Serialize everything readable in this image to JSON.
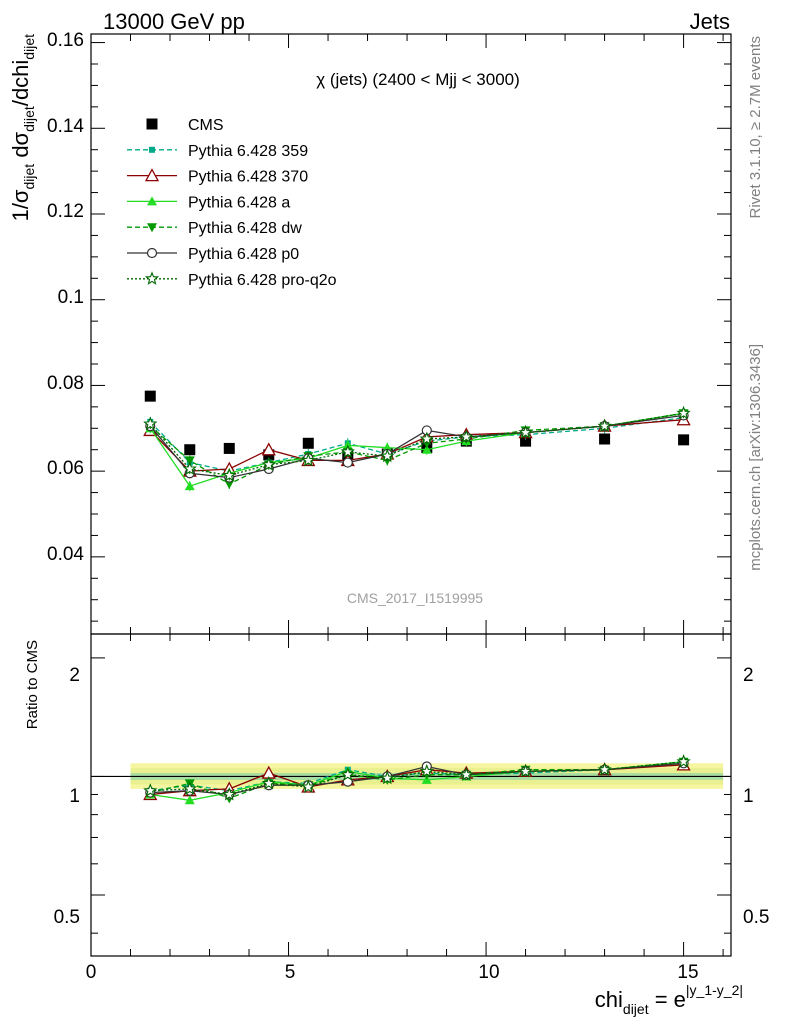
{
  "header": {
    "left": "13000 GeV pp",
    "right": "Jets"
  },
  "side_labels": {
    "rivet": "Rivet 3.1.10, ≥ 2.7M events",
    "mcplots": "mcplots.cern.ch [arXiv:1306.3436]"
  },
  "main_plot": {
    "title": "χ (jets) (2400 < Mjj < 3000)",
    "analysis_tag": "CMS_2017_I1519995",
    "ylabel_parts": [
      "1/σ",
      "dijet",
      " dσ",
      "dijet",
      "/dchi",
      "dijet"
    ],
    "yticks": [
      "0.04",
      "0.06",
      "0.08",
      "0.1",
      "0.12",
      "0.14",
      "0.16"
    ]
  },
  "ratio_plot": {
    "ylabel": "Ratio to CMS",
    "yticks_left": [
      "0.5",
      "1",
      "2"
    ],
    "yticks_right": [
      "0.5",
      "1",
      "2"
    ]
  },
  "x_axis": {
    "label_main": "chi",
    "label_sub": "dijet",
    "label_eq": " = e",
    "label_sup": "|y_1-y_2|",
    "ticks": [
      "0",
      "5",
      "10",
      "15"
    ]
  },
  "chart_data": {
    "type": "line",
    "x": [
      1.5,
      2.5,
      3.5,
      4.5,
      5.5,
      6.5,
      7.5,
      8.5,
      9.5,
      11.0,
      13.0,
      15.0
    ],
    "xlim": [
      0,
      16.2
    ],
    "ylim": [
      0.022,
      0.162
    ],
    "ratio_ylim": [
      0.35,
      2.3
    ],
    "ratio_scale": "log",
    "legend_position": "top-left",
    "series": [
      {
        "name": "CMS",
        "color": "#000000",
        "marker": "square",
        "dash": "",
        "values": [
          0.0775,
          0.065,
          0.0653,
          0.0638,
          0.0665,
          0.0638,
          0.064,
          0.0655,
          0.067,
          0.067,
          0.0675,
          0.0673
        ],
        "ratio": [
          1,
          1,
          1,
          1,
          1,
          1,
          1,
          1,
          1,
          1,
          1,
          1
        ]
      },
      {
        "name": "Pythia 6.428 359",
        "color": "#00aa88",
        "marker": "small-square",
        "dash": "5,3",
        "values": [
          0.0715,
          0.062,
          0.06,
          0.062,
          0.064,
          0.0665,
          0.064,
          0.067,
          0.068,
          0.0685,
          0.07,
          0.0725
        ],
        "ratio": [
          0.92,
          0.95,
          0.92,
          0.97,
          0.96,
          1.04,
          1.0,
          1.02,
          1.01,
          1.02,
          1.04,
          1.08
        ]
      },
      {
        "name": "Pythia 6.428 370",
        "color": "#8b0000",
        "marker": "open-triangle",
        "dash": "",
        "values": [
          0.0695,
          0.06,
          0.0605,
          0.065,
          0.0625,
          0.0625,
          0.064,
          0.068,
          0.0685,
          0.069,
          0.0705,
          0.072
        ],
        "ratio": [
          0.9,
          0.92,
          0.93,
          1.02,
          0.94,
          0.98,
          1.0,
          1.04,
          1.02,
          1.03,
          1.04,
          1.07
        ]
      },
      {
        "name": "Pythia 6.428 a",
        "color": "#22dd22",
        "marker": "triangle",
        "dash": "",
        "values": [
          0.07,
          0.0565,
          0.0595,
          0.062,
          0.063,
          0.066,
          0.0655,
          0.065,
          0.067,
          0.069,
          0.0705,
          0.0735
        ],
        "ratio": [
          0.9,
          0.87,
          0.91,
          0.97,
          0.95,
          1.03,
          0.99,
          0.98,
          1.0,
          1.03,
          1.04,
          1.09
        ]
      },
      {
        "name": "Pythia 6.428 dw",
        "color": "#009900",
        "marker": "down-triangle",
        "dash": "5,3",
        "values": [
          0.0705,
          0.0625,
          0.057,
          0.0615,
          0.0635,
          0.0645,
          0.0625,
          0.0665,
          0.0675,
          0.0695,
          0.0705,
          0.0735
        ],
        "ratio": [
          0.91,
          0.96,
          0.88,
          0.96,
          0.95,
          1.01,
          0.98,
          1.01,
          1.01,
          1.04,
          1.04,
          1.09
        ]
      },
      {
        "name": "Pythia 6.428 p0",
        "color": "#333333",
        "marker": "open-circle",
        "dash": "",
        "values": [
          0.0705,
          0.0595,
          0.0585,
          0.0605,
          0.063,
          0.062,
          0.064,
          0.0695,
          0.068,
          0.069,
          0.0705,
          0.073
        ],
        "ratio": [
          0.91,
          0.92,
          0.9,
          0.95,
          0.95,
          0.97,
          1.0,
          1.06,
          1.01,
          1.03,
          1.04,
          1.08
        ]
      },
      {
        "name": "Pythia 6.428 pro-q2o",
        "color": "#006600",
        "marker": "open-star",
        "dash": "2,2",
        "values": [
          0.071,
          0.0605,
          0.059,
          0.0615,
          0.0625,
          0.0645,
          0.0635,
          0.0675,
          0.068,
          0.069,
          0.0705,
          0.0735
        ],
        "ratio": [
          0.92,
          0.93,
          0.9,
          0.96,
          0.94,
          1.01,
          0.99,
          1.03,
          1.01,
          1.03,
          1.04,
          1.09
        ]
      }
    ]
  }
}
